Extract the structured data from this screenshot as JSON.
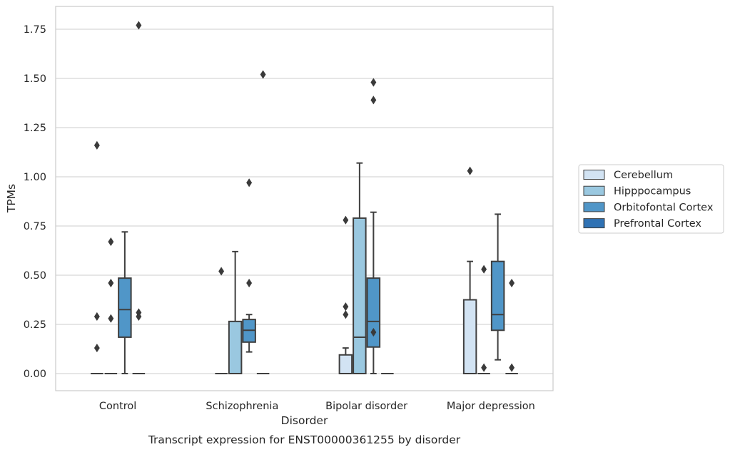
{
  "chart_data": {
    "type": "boxplot",
    "caption": "Transcript expression for ENST00000361255 by disorder",
    "xlabel": "Disorder",
    "ylabel": "TPMs",
    "ylim": [
      -0.085,
      1.86
    ],
    "yticks": [
      0.0,
      0.25,
      0.5,
      0.75,
      1.0,
      1.25,
      1.5,
      1.75
    ],
    "ytick_labels": [
      "0.00",
      "0.25",
      "0.50",
      "0.75",
      "1.00",
      "1.25",
      "1.50",
      "1.75"
    ],
    "grid": "horizontal",
    "legend_position": "right",
    "categories": [
      "Control",
      "Schizophrenia",
      "Bipolar disorder",
      "Major depression"
    ],
    "series": [
      {
        "name": "Cerebellum",
        "color": "#d2e3f3",
        "boxes": [
          {
            "q1": 0.0,
            "median": 0.0,
            "q3": 0.0,
            "whisker_low": 0.0,
            "whisker_high": 0.0,
            "outliers": [
              1.16,
              0.29,
              0.13
            ]
          },
          {
            "q1": 0.0,
            "median": 0.0,
            "q3": 0.0,
            "whisker_low": 0.0,
            "whisker_high": 0.0,
            "outliers": [
              0.52
            ]
          },
          {
            "q1": 0.0,
            "median": 0.0,
            "q3": 0.095,
            "whisker_low": 0.0,
            "whisker_high": 0.13,
            "outliers": [
              0.78,
              0.34,
              0.3
            ]
          },
          {
            "q1": 0.0,
            "median": 0.0,
            "q3": 0.375,
            "whisker_low": 0.0,
            "whisker_high": 0.57,
            "outliers": [
              1.03
            ]
          }
        ]
      },
      {
        "name": "Hipppocampus",
        "color": "#9ac8e0",
        "boxes": [
          {
            "q1": 0.0,
            "median": 0.0,
            "q3": 0.0,
            "whisker_low": 0.0,
            "whisker_high": 0.0,
            "outliers": [
              0.67,
              0.46,
              0.28
            ]
          },
          {
            "q1": 0.0,
            "median": 0.0,
            "q3": 0.265,
            "whisker_low": 0.0,
            "whisker_high": 0.62,
            "outliers": []
          },
          {
            "q1": 0.0,
            "median": 0.185,
            "q3": 0.79,
            "whisker_low": 0.0,
            "whisker_high": 1.07,
            "outliers": []
          },
          {
            "q1": 0.0,
            "median": 0.0,
            "q3": 0.0,
            "whisker_low": 0.0,
            "whisker_high": 0.0,
            "outliers": [
              0.53,
              0.03
            ]
          }
        ]
      },
      {
        "name": "Orbitofontal Cortex",
        "color": "#5096c8",
        "boxes": [
          {
            "q1": 0.185,
            "median": 0.325,
            "q3": 0.485,
            "whisker_low": 0.0,
            "whisker_high": 0.72,
            "outliers": []
          },
          {
            "q1": 0.16,
            "median": 0.22,
            "q3": 0.275,
            "whisker_low": 0.11,
            "whisker_high": 0.3,
            "outliers": [
              0.97,
              0.46
            ]
          },
          {
            "q1": 0.135,
            "median": 0.265,
            "q3": 0.485,
            "whisker_low": 0.0,
            "whisker_high": 0.82,
            "outliers": [
              1.48,
              1.39,
              0.21
            ]
          },
          {
            "q1": 0.22,
            "median": 0.3,
            "q3": 0.57,
            "whisker_low": 0.07,
            "whisker_high": 0.81,
            "outliers": []
          }
        ]
      },
      {
        "name": "Prefrontal Cortex",
        "color": "#2f72b4",
        "boxes": [
          {
            "q1": 0.0,
            "median": 0.0,
            "q3": 0.0,
            "whisker_low": 0.0,
            "whisker_high": 0.0,
            "outliers": [
              1.77,
              0.31,
              0.29
            ]
          },
          {
            "q1": 0.0,
            "median": 0.0,
            "q3": 0.0,
            "whisker_low": 0.0,
            "whisker_high": 0.0,
            "outliers": [
              1.52
            ]
          },
          {
            "q1": 0.0,
            "median": 0.0,
            "q3": 0.0,
            "whisker_low": 0.0,
            "whisker_high": 0.0,
            "outliers": []
          },
          {
            "q1": 0.0,
            "median": 0.0,
            "q3": 0.0,
            "whisker_low": 0.0,
            "whisker_high": 0.0,
            "outliers": [
              0.46,
              0.03
            ]
          }
        ]
      }
    ]
  }
}
